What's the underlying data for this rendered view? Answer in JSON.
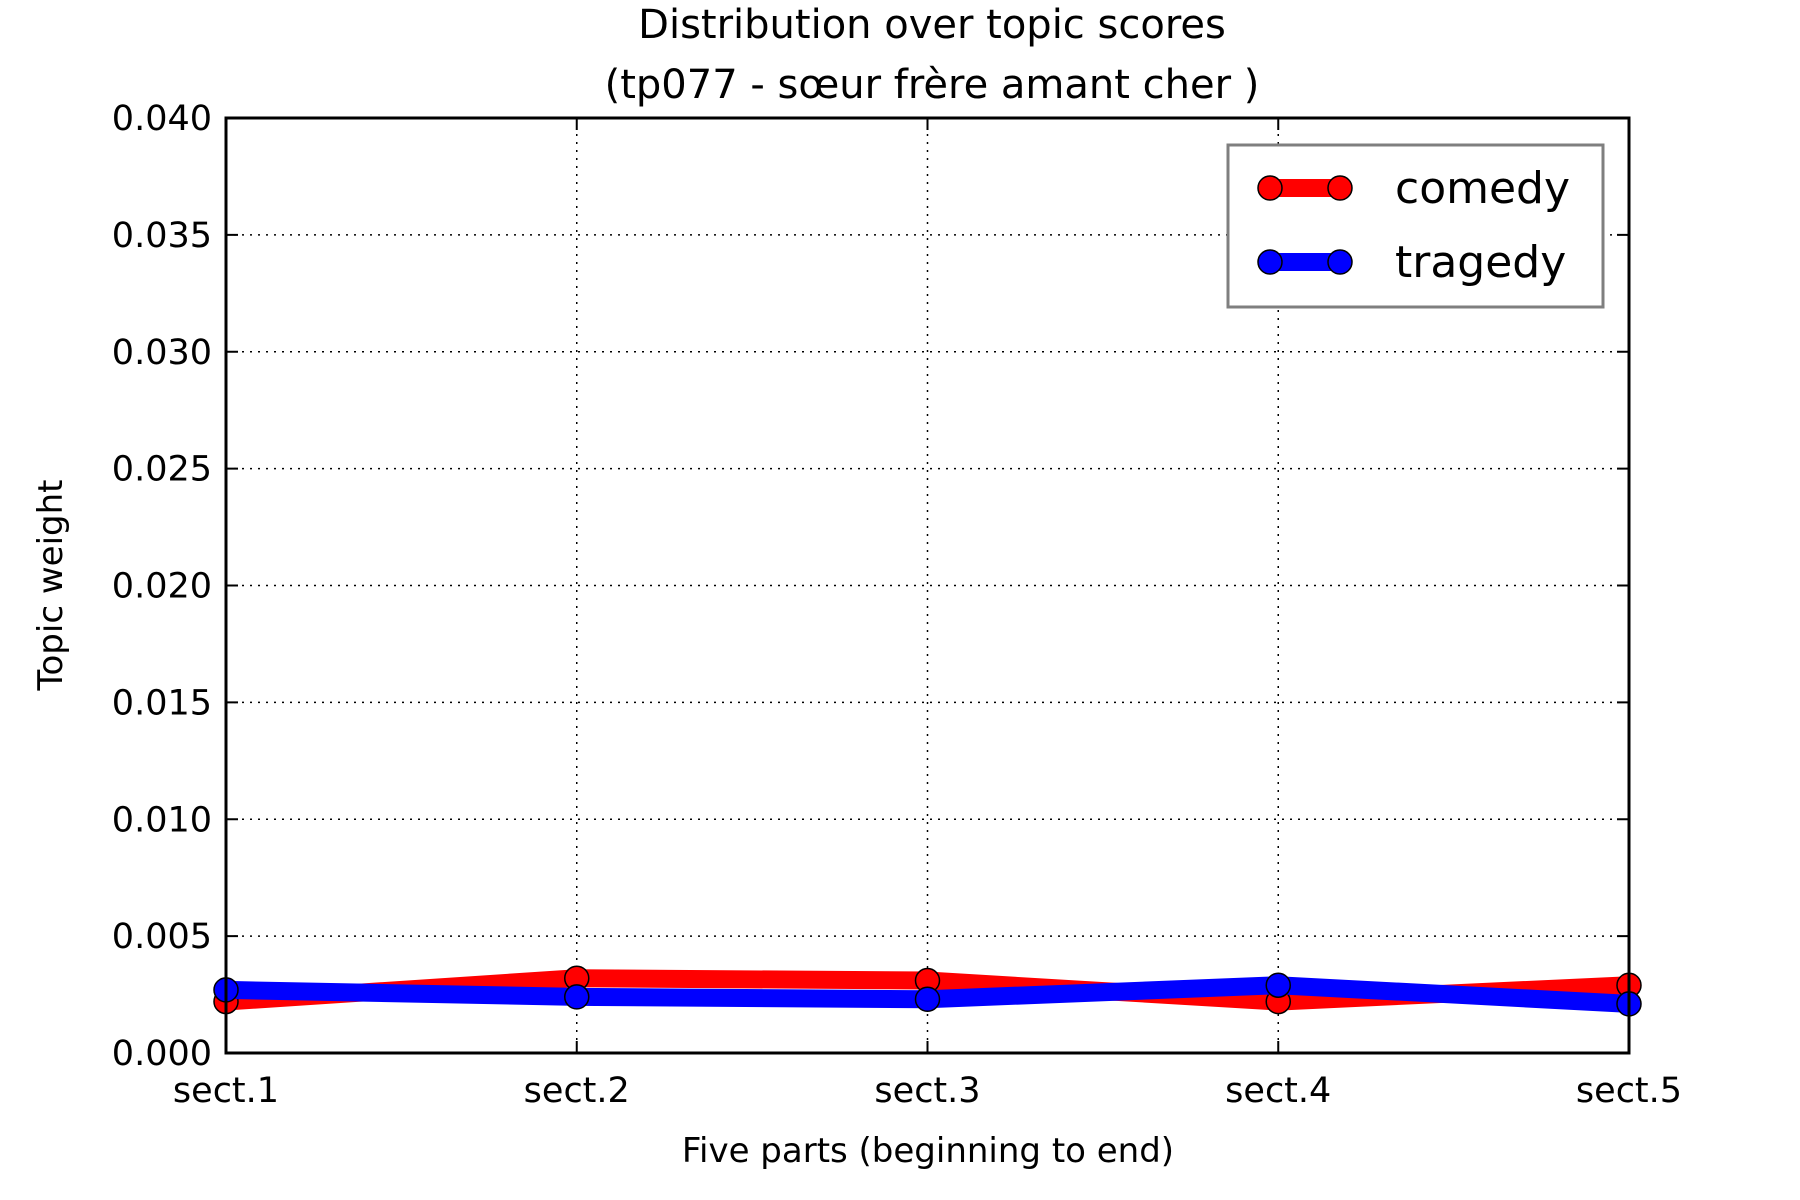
{
  "chart_data": {
    "type": "line",
    "title_lines": [
      "Distribution over topic scores",
      "(tp077 - sœur frère amant cher )"
    ],
    "xlabel": "Five parts (beginning to end)",
    "ylabel": "Topic weight",
    "categories": [
      "sect.1",
      "sect.2",
      "sect.3",
      "sect.4",
      "sect.5"
    ],
    "ylim": [
      0,
      0.04
    ],
    "yticks": [
      "0.000",
      "0.005",
      "0.010",
      "0.015",
      "0.020",
      "0.025",
      "0.030",
      "0.035",
      "0.040"
    ],
    "grid": true,
    "legend_position": "top-right",
    "series": [
      {
        "name": "comedy",
        "color": "#ff0000",
        "values": [
          0.0022,
          0.0032,
          0.0031,
          0.0022,
          0.0029
        ]
      },
      {
        "name": "tragedy",
        "color": "#0000ff",
        "values": [
          0.0027,
          0.0024,
          0.0023,
          0.0029,
          0.0021
        ]
      }
    ]
  }
}
